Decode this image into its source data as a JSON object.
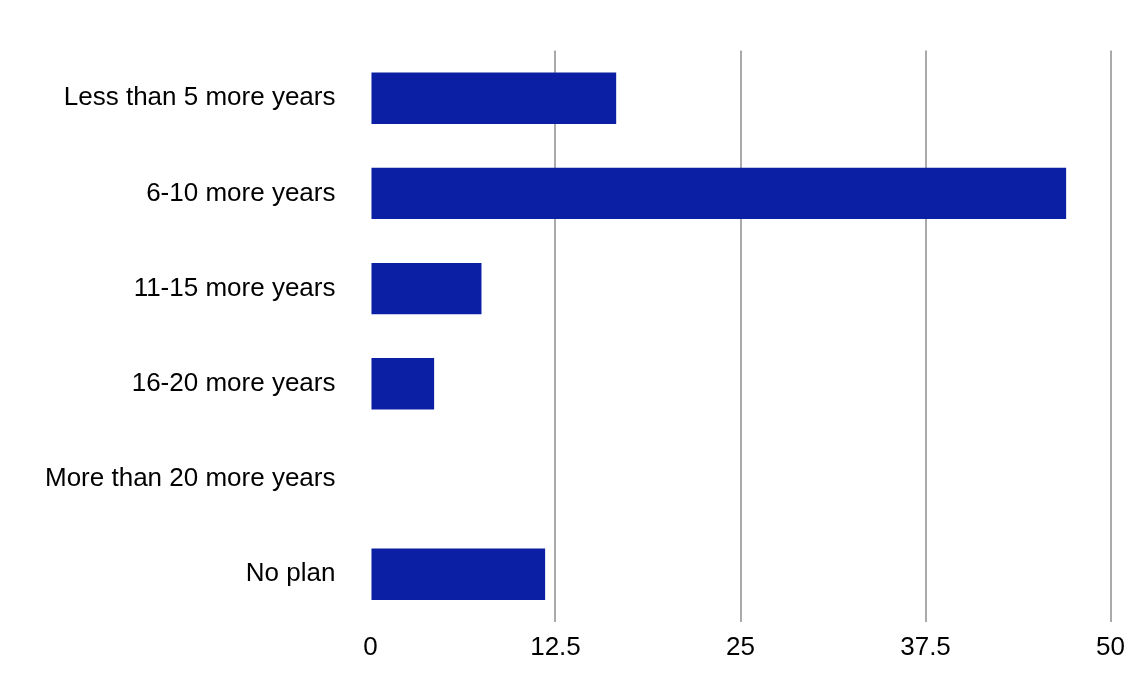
{
  "chart_data": {
    "type": "bar",
    "orientation": "horizontal",
    "categories": [
      "Less than 5 more years",
      "6-10 more years",
      "11-15 more years",
      "16-20 more years",
      "More than 20 more years",
      "No plan"
    ],
    "values": [
      16.6,
      47,
      7.5,
      4.3,
      0,
      11.8
    ],
    "color": "#0a1fa3",
    "xlim": [
      0,
      50
    ],
    "xticks": [
      0,
      12.5,
      25,
      37.5,
      50
    ],
    "grid": "x",
    "legend": false
  }
}
